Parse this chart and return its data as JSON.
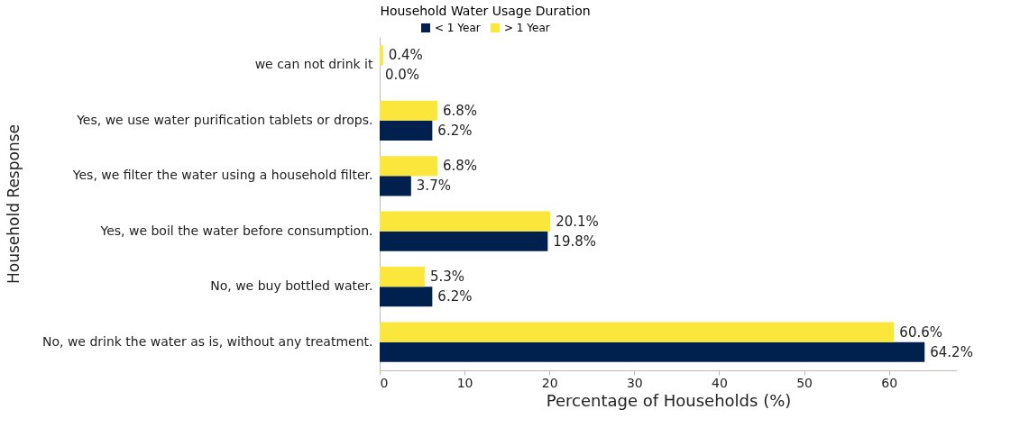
{
  "chart_data": {
    "type": "bar",
    "orientation": "horizontal",
    "legend_title": "Household Water Usage Duration",
    "xlabel": "Percentage of Households (%)",
    "ylabel": "Household Response",
    "categories": [
      "we can not drink it",
      "Yes, we use water purification tablets or drops.",
      "Yes, we filter the water using a household filter.",
      "Yes, we boil the water before consumption.",
      "No, we buy bottled water.",
      "No, we drink the water as is, without any treatment."
    ],
    "series": [
      {
        "name": "< 1 Year",
        "color": "#00204e",
        "values": [
          0.0,
          6.2,
          3.7,
          19.8,
          6.2,
          64.2
        ],
        "value_labels": [
          "0.0%",
          "6.2%",
          "3.7%",
          "19.8%",
          "6.2%",
          "64.2%"
        ]
      },
      {
        "name": "> 1 Year",
        "color": "#fbe73b",
        "values": [
          0.4,
          6.8,
          6.8,
          20.1,
          5.3,
          60.6
        ],
        "value_labels": [
          "0.4%",
          "6.8%",
          "6.8%",
          "20.1%",
          "5.3%",
          "60.6%"
        ]
      }
    ],
    "xlim": [
      0,
      68
    ],
    "xticks": [
      0,
      10,
      20,
      30,
      40,
      50,
      60
    ],
    "grid": false,
    "legend": "top"
  }
}
